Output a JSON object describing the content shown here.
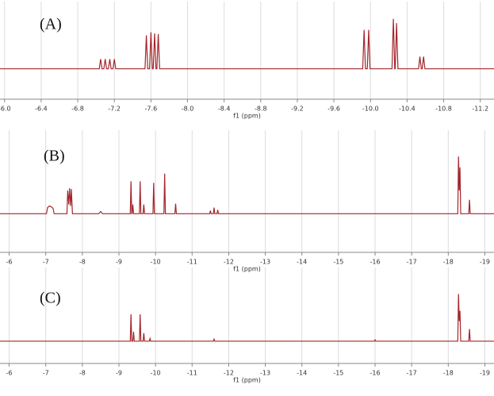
{
  "chart_data": [
    {
      "type": "line",
      "title": "(A)",
      "xlabel": "f1 (ppm)",
      "grid": true,
      "xlim": [
        -5.95,
        -11.35
      ],
      "ylim": [
        -0.5,
        1.0
      ],
      "xticks": [
        {
          "value": -6.0,
          "label": "-6.0"
        },
        -6.4,
        -6.8,
        -7.2,
        -7.6,
        {
          "value": -8.0,
          "label": "-8.0"
        },
        -8.4,
        -8.8,
        -9.2,
        -9.6,
        {
          "value": -10.0,
          "label": "-10.0"
        },
        -10.4,
        -10.8,
        -11.2
      ],
      "series": [
        {
          "color": "#a3262c",
          "x": [
            -5.95,
            -7.035,
            -7.05,
            -7.065,
            -7.085,
            -7.1,
            -7.115,
            -7.135,
            -7.15,
            -7.165,
            -7.185,
            -7.2,
            -7.215,
            -7.535,
            -7.55,
            -7.565,
            -7.585,
            -7.6,
            -7.615,
            -7.625,
            -7.64,
            -7.655,
            -7.665,
            -7.68,
            -7.695,
            -9.915,
            -9.93,
            -9.945,
            -9.965,
            -9.98,
            -9.995,
            -10.235,
            -10.25,
            -10.265,
            -10.27,
            -10.285,
            -10.3,
            -10.525,
            -10.54,
            -10.555,
            -10.565,
            -10.58,
            -10.595,
            -11.35
          ],
          "values": [
            0,
            0,
            0.16,
            0,
            0,
            0.16,
            0,
            0,
            0.16,
            0,
            0,
            0.16,
            0,
            0,
            0.55,
            0,
            0,
            0.6,
            0,
            0,
            0.58,
            0,
            0,
            0.57,
            0,
            0,
            0.64,
            0,
            0,
            0.64,
            0,
            0,
            0.82,
            0,
            0,
            0.75,
            0,
            0,
            0.2,
            0,
            0,
            0.2,
            0,
            0
          ]
        }
      ]
    },
    {
      "type": "line",
      "title": "(B)",
      "xlabel": "f1 (ppm)",
      "grid": true,
      "xlim": [
        -5.75,
        -19.25
      ],
      "ylim": [
        -0.5,
        1.0
      ],
      "xticks": [
        -6,
        -7,
        -8,
        -9,
        -10,
        -11,
        -12,
        -13,
        -14,
        -15,
        -16,
        -17,
        -18,
        -19
      ],
      "series": [
        {
          "color": "#a3262c",
          "x": [
            -5.75,
            -7.02,
            -7.05,
            -7.1,
            -7.15,
            -7.2,
            -7.23,
            -7.58,
            -7.6,
            -7.63,
            -7.65,
            -7.68,
            -7.7,
            -7.73,
            -8.45,
            -8.5,
            -8.55,
            -9.31,
            -9.33,
            -9.35,
            -9.36,
            -9.38,
            -9.4,
            -9.56,
            -9.58,
            -9.6,
            -9.66,
            -9.68,
            -9.7,
            -9.93,
            -9.95,
            -9.97,
            -10.23,
            -10.25,
            -10.27,
            -10.53,
            -10.55,
            -10.57,
            -11.48,
            -11.5,
            -11.52,
            -11.58,
            -11.6,
            -11.62,
            -11.68,
            -11.7,
            -11.72,
            -18.26,
            -18.28,
            -18.3,
            -18.32,
            -18.34,
            -18.56,
            -18.58,
            -18.6,
            -19.25
          ],
          "values": [
            0,
            0,
            0.08,
            0.1,
            0.09,
            0.07,
            0,
            0,
            0.3,
            0.12,
            0.33,
            0.1,
            0.32,
            0,
            0,
            0.03,
            0,
            0,
            0.42,
            0,
            0,
            0.12,
            0,
            0,
            0.42,
            0,
            0,
            0.12,
            0,
            0,
            0.4,
            0,
            0,
            0.52,
            0,
            0,
            0.13,
            0,
            0,
            0.04,
            0,
            0,
            0.08,
            0,
            0,
            0.05,
            0,
            0,
            0.74,
            0.3,
            0.6,
            0,
            0,
            0.18,
            0,
            0
          ]
        }
      ]
    },
    {
      "type": "line",
      "title": "(C)",
      "xlabel": "f1 (ppm)",
      "grid": true,
      "xlim": [
        -5.75,
        -19.25
      ],
      "ylim": [
        -0.33,
        1.0
      ],
      "xticks": [
        -6,
        -7,
        -8,
        -9,
        -10,
        -11,
        -12,
        -13,
        -14,
        -15,
        -16,
        -17,
        -18,
        -19
      ],
      "series": [
        {
          "color": "#a3262c",
          "x": [
            -5.75,
            -9.31,
            -9.33,
            -9.35,
            -9.38,
            -9.4,
            -9.42,
            -9.56,
            -9.58,
            -9.6,
            -9.66,
            -9.68,
            -9.7,
            -9.83,
            -9.85,
            -9.87,
            -11.58,
            -11.6,
            -11.62,
            -15.98,
            -16,
            -16.02,
            -18.26,
            -18.28,
            -18.3,
            -18.32,
            -18.34,
            -18.56,
            -18.58,
            -18.6,
            -19.25
          ],
          "values": [
            0,
            0,
            0.4,
            0,
            0,
            0.14,
            0,
            0,
            0.4,
            0,
            0,
            0.12,
            0,
            0,
            0.04,
            0,
            0,
            0.03,
            0,
            0,
            0.02,
            0,
            0,
            0.7,
            0.3,
            0.45,
            0,
            0,
            0.18,
            0,
            0
          ]
        }
      ]
    }
  ]
}
